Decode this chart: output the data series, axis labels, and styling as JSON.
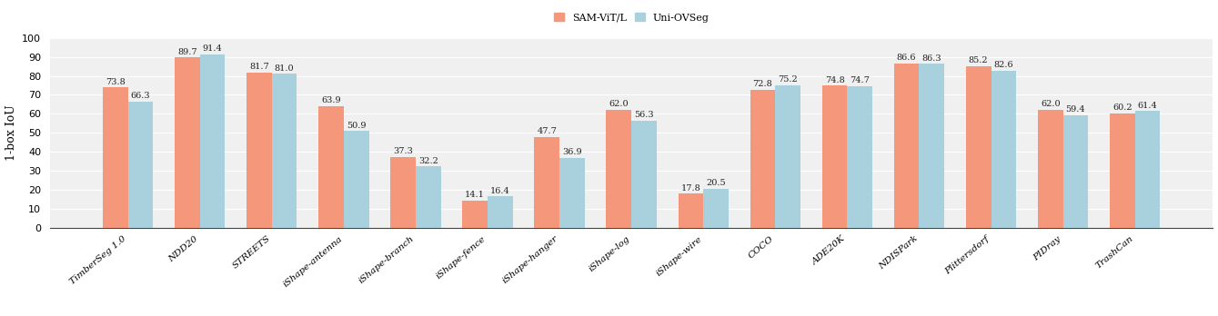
{
  "categories": [
    "TimberSeg 1.0",
    "NDD20",
    "STREETS",
    "iShape-antenna",
    "iShape-branch",
    "iShape-fence",
    "iShape-hanger",
    "iShape-log",
    "iShape-wire",
    "COCO",
    "ADE20K",
    "NDISPark",
    "Plittersdorf",
    "PIDray",
    "TrashCan"
  ],
  "sam_values": [
    73.8,
    89.7,
    81.7,
    63.9,
    37.3,
    14.1,
    47.7,
    62.0,
    17.8,
    72.8,
    74.8,
    86.6,
    85.2,
    62.0,
    60.2
  ],
  "uni_values": [
    66.3,
    91.4,
    81.0,
    50.9,
    32.2,
    16.4,
    36.9,
    56.3,
    20.5,
    75.2,
    74.7,
    86.3,
    82.6,
    59.4,
    61.4
  ],
  "sam_color": "#F5977B",
  "uni_color": "#A9D0DD",
  "ylabel": "1-box IoU",
  "ylim": [
    0,
    100
  ],
  "yticks": [
    0,
    10,
    20,
    30,
    40,
    50,
    60,
    70,
    80,
    90,
    100
  ],
  "legend_sam": "SAM-ViT/L",
  "legend_uni": "Uni-OVSeg",
  "bar_width": 0.35,
  "label_fontsize": 9,
  "tick_fontsize": 8,
  "value_fontsize": 7,
  "xtick_fontsize": 7.5
}
